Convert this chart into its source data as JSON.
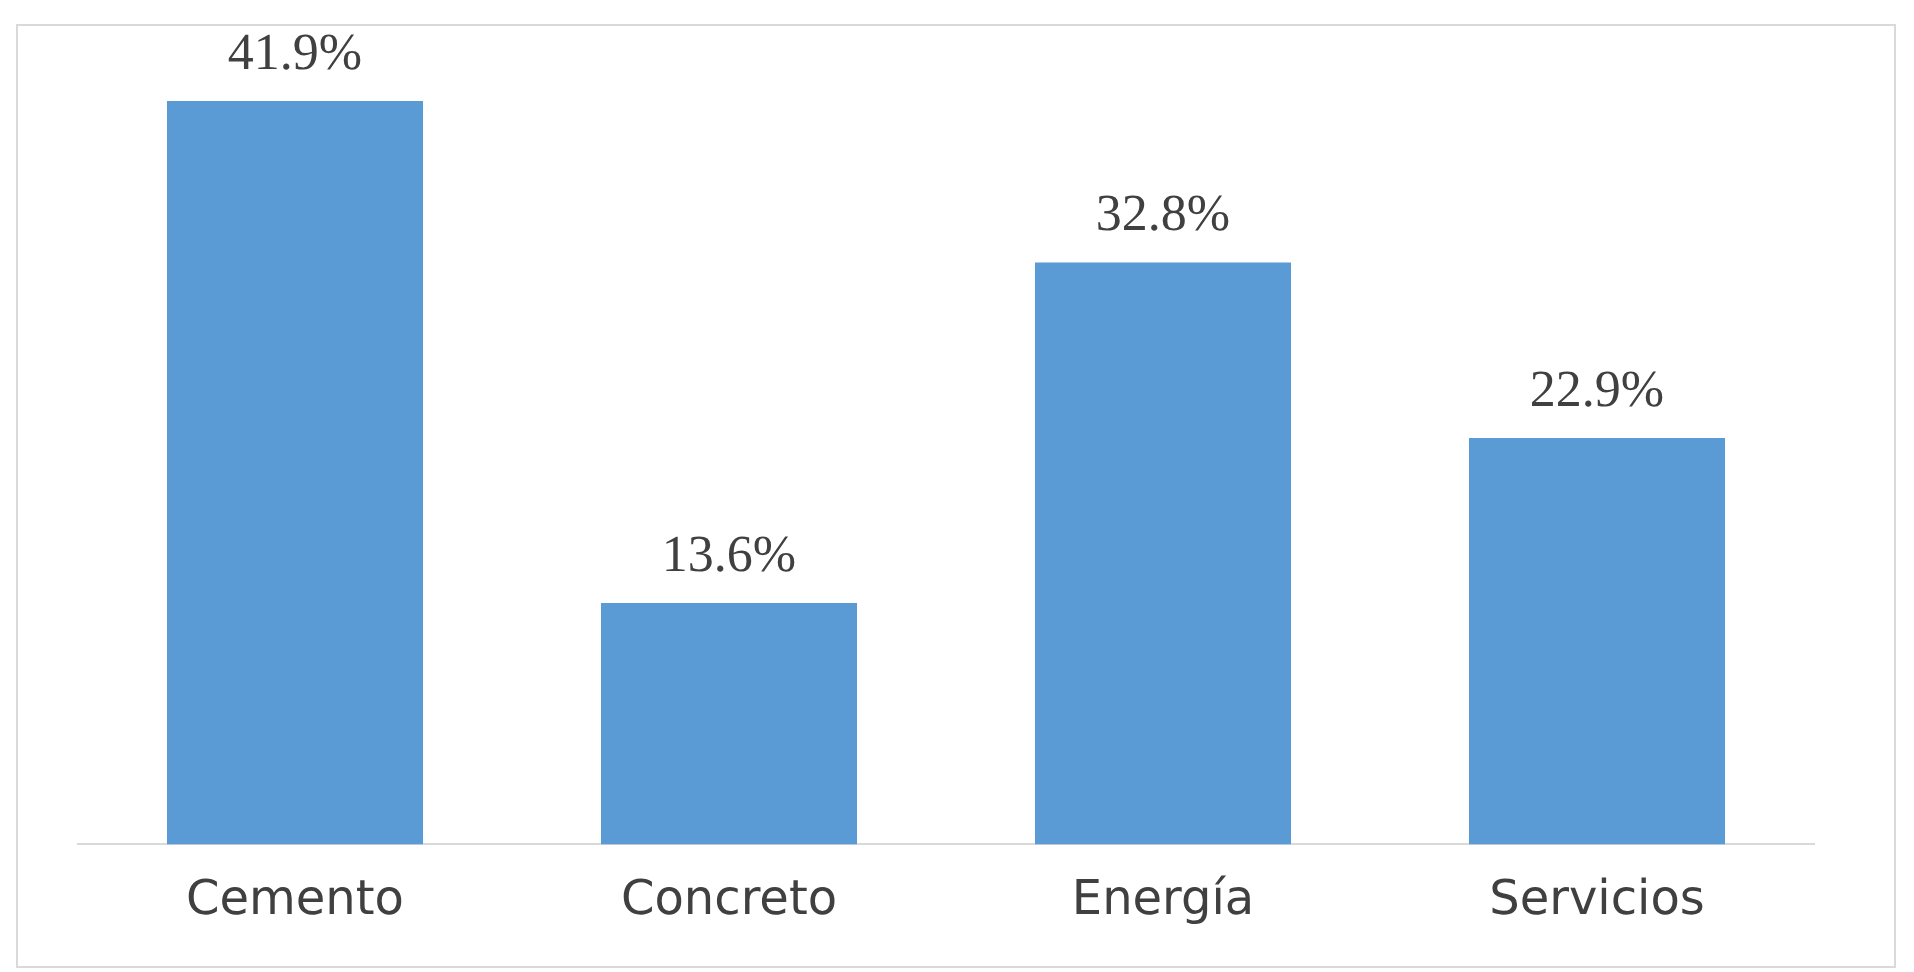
{
  "chart_data": {
    "type": "bar",
    "categories": [
      "Cemento",
      "Concreto",
      "Energía",
      "Servicios"
    ],
    "values": [
      41.9,
      13.6,
      32.8,
      22.9
    ],
    "value_labels": [
      "41.9%",
      "13.6%",
      "32.8%",
      "22.9%"
    ],
    "color": "#5b9bd5",
    "grid": false,
    "legend": false,
    "tick_labels": "x"
  }
}
